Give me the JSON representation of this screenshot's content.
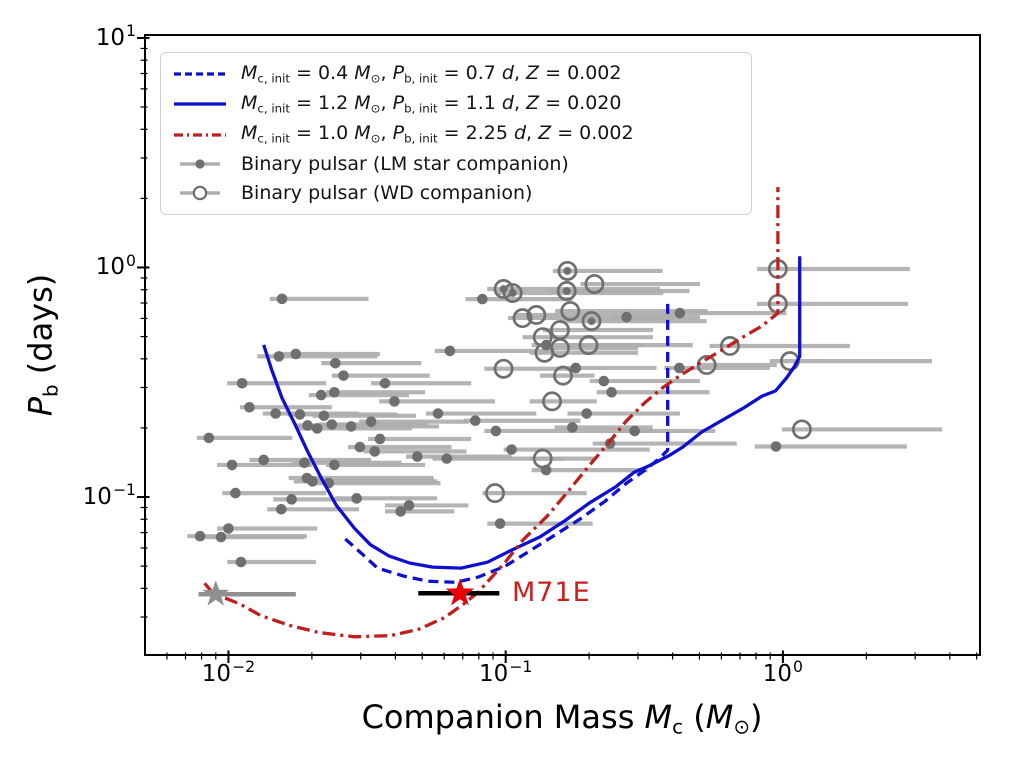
{
  "figure": {
    "bg": "#ffffff"
  },
  "colors": {
    "blue_track": "#0f10cf",
    "red_track": "#bf1f1f",
    "gray_point": "#6f6f6f",
    "gray_bar": "#aeaeae",
    "gray_star": "#8f8f8f",
    "gray_star_bar": "#8f8f8f",
    "red_star": "#e8000b",
    "black_bar": "#000000",
    "annotation_red": "#cc2020",
    "spine": "#000000"
  },
  "axes": {
    "x": {
      "scale": "log",
      "min": 0.005,
      "max": 5.14,
      "label_parts": [
        [
          "Companion Mass ",
          "r"
        ],
        [
          "M",
          "i"
        ],
        [
          "c",
          "s"
        ],
        [
          " (",
          "r"
        ],
        [
          "M",
          "i"
        ],
        [
          "⊙",
          "s"
        ],
        [
          ")",
          "r"
        ]
      ],
      "ticks": [
        {
          "value": 0.01,
          "base": "10",
          "exp": "−2"
        },
        {
          "value": 0.1,
          "base": "10",
          "exp": "−1"
        },
        {
          "value": 1,
          "base": "10",
          "exp": "0"
        }
      ]
    },
    "y": {
      "scale": "log",
      "min": 0.0205,
      "max": 10.3,
      "label_parts": [
        [
          "P",
          "i"
        ],
        [
          "b",
          "s"
        ],
        [
          " (days)",
          "r"
        ]
      ],
      "ticks": [
        {
          "value": 10,
          "base": "10",
          "exp": "1"
        },
        {
          "value": 1,
          "base": "10",
          "exp": "0"
        },
        {
          "value": 0.1,
          "base": "10",
          "exp": "−1"
        }
      ]
    }
  },
  "legend": {
    "position": "upper left",
    "entries": [
      {
        "marker": "dashed-line",
        "color": "#0f10cf",
        "label_parts": [
          [
            "M",
            "i"
          ],
          [
            "c, init",
            "s"
          ],
          [
            " = 0.4 ",
            "r"
          ],
          [
            "M",
            "i"
          ],
          [
            "⊙",
            "s"
          ],
          [
            ", ",
            "r"
          ],
          [
            "P",
            "i"
          ],
          [
            "b, init",
            "s"
          ],
          [
            " = 0.7 ",
            "r"
          ],
          [
            "d",
            "i"
          ],
          [
            ", ",
            "r"
          ],
          [
            "Z",
            "i"
          ],
          [
            " = 0.002",
            "r"
          ]
        ]
      },
      {
        "marker": "solid-line",
        "color": "#0f10cf",
        "label_parts": [
          [
            "M",
            "i"
          ],
          [
            "c, init",
            "s"
          ],
          [
            " = 1.2 ",
            "r"
          ],
          [
            "M",
            "i"
          ],
          [
            "⊙",
            "s"
          ],
          [
            ", ",
            "r"
          ],
          [
            "P",
            "i"
          ],
          [
            "b, init",
            "s"
          ],
          [
            " = 1.1 ",
            "r"
          ],
          [
            "d",
            "i"
          ],
          [
            ", ",
            "r"
          ],
          [
            "Z",
            "i"
          ],
          [
            " = 0.020",
            "r"
          ]
        ]
      },
      {
        "marker": "dashdot-line",
        "color": "#bf1f1f",
        "label_parts": [
          [
            "M",
            "i"
          ],
          [
            "c, init",
            "s"
          ],
          [
            " = 1.0 ",
            "r"
          ],
          [
            "M",
            "i"
          ],
          [
            "⊙",
            "s"
          ],
          [
            ", ",
            "r"
          ],
          [
            "P",
            "i"
          ],
          [
            "b, init",
            "s"
          ],
          [
            " = 2.25 ",
            "r"
          ],
          [
            "d",
            "i"
          ],
          [
            ", ",
            "r"
          ],
          [
            "Z",
            "i"
          ],
          [
            " = 0.002",
            "r"
          ]
        ]
      },
      {
        "marker": "lm-dot",
        "color": "#6f6f6f",
        "label_parts": [
          [
            "Binary pulsar (LM star companion)",
            "r"
          ]
        ]
      },
      {
        "marker": "wd-circle",
        "color": "#6f6f6f",
        "label_parts": [
          [
            "Binary pulsar (WD companion)",
            "r"
          ]
        ]
      }
    ]
  },
  "chart_data": {
    "type": "scatter",
    "title": "",
    "xlabel": "Companion Mass Mc (Msun)",
    "ylabel": "Pb (days)",
    "x_scale": "log",
    "y_scale": "log",
    "xlim": [
      0.005,
      5.14
    ],
    "ylim": [
      0.0205,
      10.3
    ],
    "grid": false,
    "series": [
      {
        "name": "track Mc,init=0.4 Pb,init=0.7d Z=0.002",
        "style": "dashed",
        "color": "#0f10cf",
        "points": [
          [
            0.0264,
            0.0656
          ],
          [
            0.0307,
            0.0558
          ],
          [
            0.0345,
            0.049
          ],
          [
            0.043,
            0.0452
          ],
          [
            0.0524,
            0.043
          ],
          [
            0.0662,
            0.0425
          ],
          [
            0.0795,
            0.0448
          ],
          [
            0.0998,
            0.05
          ],
          [
            0.122,
            0.0582
          ],
          [
            0.15,
            0.0681
          ],
          [
            0.186,
            0.0804
          ],
          [
            0.228,
            0.0958
          ],
          [
            0.273,
            0.115
          ],
          [
            0.318,
            0.131
          ],
          [
            0.358,
            0.147
          ],
          [
            0.384,
            0.16
          ],
          [
            0.384,
            0.7
          ]
        ]
      },
      {
        "name": "track Mc,init=1.2 Pb,init=1.1d Z=0.020",
        "style": "solid",
        "color": "#0f10cf",
        "points": [
          [
            0.0134,
            0.46
          ],
          [
            0.0143,
            0.36
          ],
          [
            0.0156,
            0.27
          ],
          [
            0.0173,
            0.21
          ],
          [
            0.0192,
            0.16
          ],
          [
            0.0216,
            0.121
          ],
          [
            0.0245,
            0.092
          ],
          [
            0.0285,
            0.073
          ],
          [
            0.0325,
            0.062
          ],
          [
            0.038,
            0.0553
          ],
          [
            0.045,
            0.0516
          ],
          [
            0.0545,
            0.0495
          ],
          [
            0.069,
            0.049
          ],
          [
            0.086,
            0.052
          ],
          [
            0.103,
            0.058
          ],
          [
            0.133,
            0.067
          ],
          [
            0.164,
            0.079
          ],
          [
            0.2,
            0.094
          ],
          [
            0.25,
            0.111
          ],
          [
            0.29,
            0.128
          ],
          [
            0.33,
            0.137
          ],
          [
            0.39,
            0.152
          ],
          [
            0.435,
            0.165
          ],
          [
            0.51,
            0.192
          ],
          [
            0.6,
            0.215
          ],
          [
            0.72,
            0.244
          ],
          [
            0.84,
            0.275
          ],
          [
            0.94,
            0.29
          ],
          [
            1.03,
            0.33
          ],
          [
            1.1,
            0.37
          ],
          [
            1.15,
            0.41
          ],
          [
            1.15,
            1.12
          ]
        ]
      },
      {
        "name": "track Mc,init=1.0 Pb,init=2.25d Z=0.002",
        "style": "dashdot",
        "color": "#bf1f1f",
        "points": [
          [
            0.0082,
            0.0421
          ],
          [
            0.0088,
            0.0381
          ],
          [
            0.011,
            0.0342
          ],
          [
            0.0131,
            0.0304
          ],
          [
            0.0166,
            0.0276
          ],
          [
            0.0212,
            0.0257
          ],
          [
            0.0285,
            0.0246
          ],
          [
            0.0385,
            0.0249
          ],
          [
            0.0484,
            0.0265
          ],
          [
            0.0601,
            0.0298
          ],
          [
            0.0705,
            0.0342
          ],
          [
            0.0795,
            0.0385
          ],
          [
            0.0885,
            0.0444
          ],
          [
            0.0998,
            0.0521
          ],
          [
            0.115,
            0.0647
          ],
          [
            0.141,
            0.0824
          ],
          [
            0.167,
            0.105
          ],
          [
            0.198,
            0.135
          ],
          [
            0.234,
            0.171
          ],
          [
            0.273,
            0.215
          ],
          [
            0.318,
            0.258
          ],
          [
            0.365,
            0.297
          ],
          [
            0.425,
            0.338
          ],
          [
            0.502,
            0.383
          ],
          [
            0.603,
            0.437
          ],
          [
            0.729,
            0.503
          ],
          [
            0.84,
            0.556
          ],
          [
            0.912,
            0.602
          ],
          [
            0.959,
            0.633
          ],
          [
            0.959,
            2.24
          ]
        ]
      }
    ],
    "pulsars_lm": [
      [
        0.0156,
        0.73,
        0.0141,
        0.032
      ],
      [
        0.0152,
        0.41,
        0.0127,
        0.0345
      ],
      [
        0.0175,
        0.42,
        0.0153,
        0.0352
      ],
      [
        0.0243,
        0.383,
        0.0216,
        0.0496
      ],
      [
        0.026,
        0.338,
        0.0236,
        0.0532
      ],
      [
        0.0112,
        0.313,
        0.0099,
        0.0225
      ],
      [
        0.0367,
        0.313,
        0.0327,
        0.0751
      ],
      [
        0.0216,
        0.278,
        0.0195,
        0.0448
      ],
      [
        0.0241,
        0.286,
        0.0225,
        0.0512
      ],
      [
        0.0397,
        0.261,
        0.035,
        0.0915
      ],
      [
        0.0119,
        0.246,
        0.011,
        0.0236
      ],
      [
        0.0148,
        0.231,
        0.0133,
        0.0296
      ],
      [
        0.0181,
        0.229,
        0.0163,
        0.0405
      ],
      [
        0.0221,
        0.226,
        0.0201,
        0.0475
      ],
      [
        0.0327,
        0.213,
        0.0296,
        0.0734
      ],
      [
        0.057,
        0.231,
        0.0516,
        0.129
      ],
      [
        0.0193,
        0.205,
        0.0175,
        0.0459
      ],
      [
        0.0209,
        0.199,
        0.0178,
        0.0459
      ],
      [
        0.0236,
        0.207,
        0.0212,
        0.0524
      ],
      [
        0.0277,
        0.203,
        0.0245,
        0.0575
      ],
      [
        0.0777,
        0.215,
        0.0705,
        0.186
      ],
      [
        0.0085,
        0.181,
        0.0077,
        0.017
      ],
      [
        0.0922,
        0.194,
        0.0837,
        0.339
      ],
      [
        0.0352,
        0.179,
        0.0319,
        0.0751
      ],
      [
        0.0298,
        0.165,
        0.027,
        0.0638
      ],
      [
        0.0337,
        0.158,
        0.0307,
        0.0722
      ],
      [
        0.048,
        0.15,
        0.0437,
        0.105
      ],
      [
        0.0613,
        0.147,
        0.0545,
        0.161
      ],
      [
        0.0134,
        0.145,
        0.0119,
        0.0327
      ],
      [
        0.0103,
        0.138,
        0.0091,
        0.0201
      ],
      [
        0.0188,
        0.141,
        0.0169,
        0.0421
      ],
      [
        0.0241,
        0.138,
        0.0225,
        0.0512
      ],
      [
        0.0629,
        0.433,
        0.0554,
        0.144
      ],
      [
        0.0824,
        0.728,
        0.0716,
        0.174
      ],
      [
        0.14,
        0.459,
        0.124,
        0.317
      ],
      [
        0.179,
        0.365,
        0.167,
        0.35
      ],
      [
        0.226,
        0.32,
        0.201,
        0.502
      ],
      [
        0.241,
        0.286,
        0.213,
        0.544
      ],
      [
        0.273,
        0.608,
        0.241,
        0.502
      ],
      [
        0.425,
        0.633,
        0.374,
        1.03
      ],
      [
        0.423,
        0.365,
        0.374,
        0.897
      ],
      [
        0.944,
        0.166,
        0.792,
        2.8
      ],
      [
        0.196,
        0.231,
        0.167,
        0.425
      ],
      [
        0.174,
        0.201,
        0.15,
        0.339
      ],
      [
        0.292,
        0.194,
        0.258,
        0.57
      ],
      [
        0.238,
        0.171,
        0.206,
        0.682
      ],
      [
        0.105,
        0.161,
        0.0983,
        0.331
      ],
      [
        0.14,
        0.131,
        0.124,
        0.325
      ],
      [
        0.0955,
        0.0766,
        0.0858,
        0.206
      ],
      [
        0.0106,
        0.104,
        0.0095,
        0.0225
      ],
      [
        0.0169,
        0.0977,
        0.0145,
        0.0296
      ],
      [
        0.0155,
        0.0884,
        0.0138,
        0.0296
      ],
      [
        0.029,
        0.0987,
        0.0243,
        0.0566
      ],
      [
        0.0448,
        0.0919,
        0.0367,
        0.0734
      ],
      [
        0.0418,
        0.0866,
        0.0367,
        0.0653
      ],
      [
        0.01,
        0.0729,
        0.0091,
        0.0209
      ],
      [
        0.0079,
        0.0675,
        0.0071,
        0.0192
      ],
      [
        0.0094,
        0.0669,
        0.0082,
        0.0188
      ],
      [
        0.0111,
        0.0521,
        0.0099,
        0.0207
      ],
      [
        0.0201,
        0.117,
        0.0172,
        0.0566
      ],
      [
        0.0192,
        0.121,
        0.0165,
        0.055
      ],
      [
        0.023,
        0.115,
        0.0201,
        0.0582
      ]
    ],
    "pulsars_wd": [
      [
        0.167,
        0.966,
        0.148,
        0.368,
        1
      ],
      [
        0.0983,
        0.806,
        0.0858,
        0.36,
        1
      ],
      [
        0.106,
        0.774,
        0.0928,
        0.37,
        1
      ],
      [
        0.209,
        0.847,
        0.186,
        0.502,
        0
      ],
      [
        0.166,
        0.79,
        0.144,
        0.46,
        1
      ],
      [
        0.171,
        0.646,
        0.151,
        0.535,
        0
      ],
      [
        0.115,
        0.602,
        0.102,
        0.402,
        0
      ],
      [
        0.129,
        0.621,
        0.108,
        0.4,
        0
      ],
      [
        0.204,
        0.584,
        0.157,
        0.531,
        1
      ],
      [
        0.136,
        0.497,
        0.115,
        0.34,
        0
      ],
      [
        0.157,
        0.534,
        0.136,
        0.34,
        0
      ],
      [
        0.199,
        0.459,
        0.17,
        0.473,
        0
      ],
      [
        0.138,
        0.425,
        0.122,
        0.3,
        0
      ],
      [
        0.0983,
        0.362,
        0.0837,
        0.186,
        0
      ],
      [
        0.161,
        0.338,
        0.133,
        0.209,
        0
      ],
      [
        0.147,
        0.261,
        0.122,
        0.213,
        0
      ],
      [
        0.136,
        0.147,
        0.122,
        0.209,
        0
      ],
      [
        0.0915,
        0.104,
        0.0824,
        0.196,
        0
      ],
      [
        0.531,
        0.376,
        0.502,
        0.951,
        0
      ],
      [
        0.644,
        0.455,
        0.544,
        1.745,
        0
      ],
      [
        1.06,
        0.391,
        0.897,
        3.45,
        0
      ],
      [
        1.171,
        0.197,
        0.992,
        3.75,
        0
      ],
      [
        0.959,
        0.985,
        0.806,
        2.87,
        0
      ],
      [
        0.959,
        0.694,
        0.806,
        2.83,
        0
      ],
      [
        0.157,
        0.446,
        0.138,
        0.3,
        0
      ]
    ],
    "stars": [
      {
        "label": "M71E",
        "x": 0.0684,
        "y": 0.0381,
        "xlo": 0.0484,
        "xhi": 0.0949,
        "color": "#e8000b",
        "bar_color": "#000000",
        "label_color": "#cc2020"
      },
      {
        "label": "",
        "x": 0.009,
        "y": 0.0377,
        "xlo": 0.0078,
        "xhi": 0.0175,
        "color": "#8f8f8f",
        "bar_color": "#8f8f8f",
        "label_color": ""
      }
    ]
  }
}
